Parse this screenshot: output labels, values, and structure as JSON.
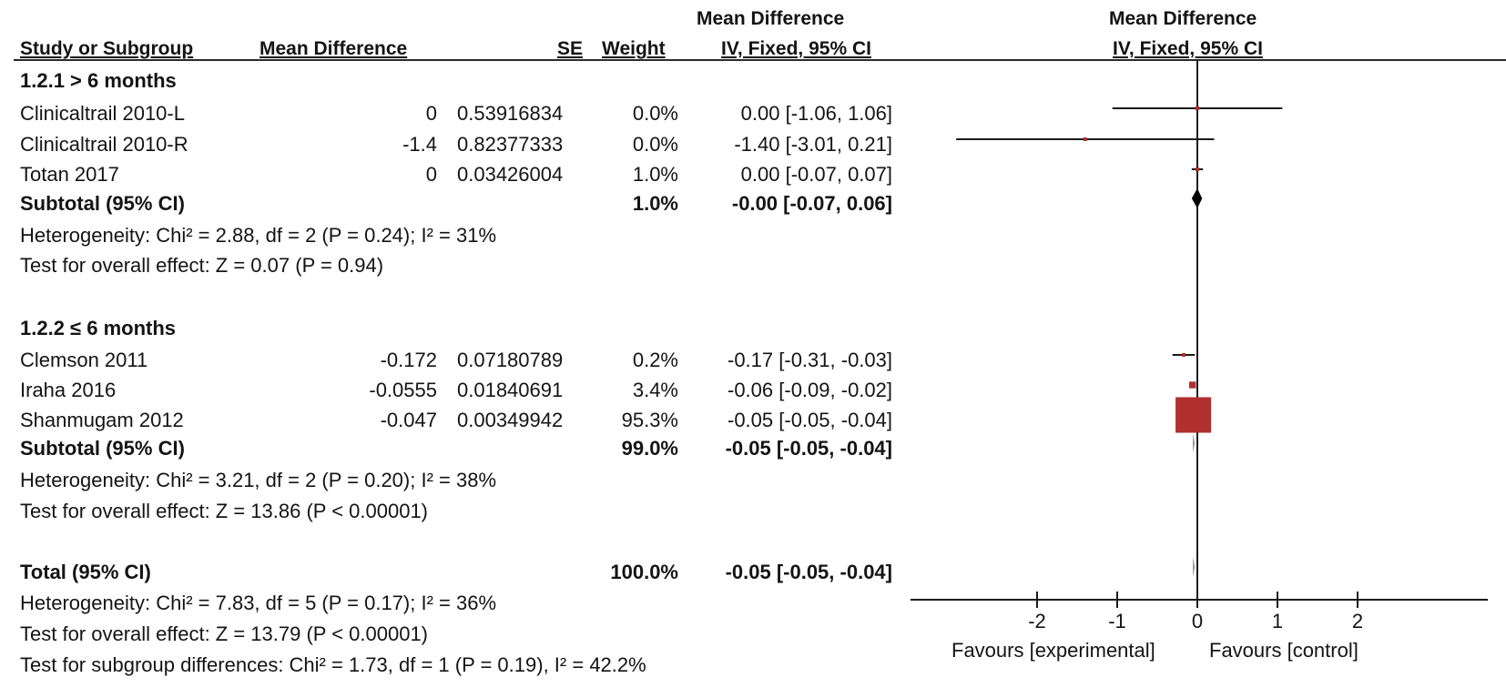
{
  "headers": {
    "study": "Study or Subgroup",
    "md": "Mean Difference",
    "se": "SE",
    "weight": "Weight",
    "ci_top": "Mean Difference",
    "ci_bottom": "IV, Fixed, 95% CI",
    "plot_top": "Mean Difference",
    "plot_bottom": "IV, Fixed, 95% CI"
  },
  "groups": [
    {
      "title": "1.2.1 > 6 months",
      "studies": [
        {
          "name": "Clinicaltrail 2010-L",
          "md": "0",
          "se": "0.53916834",
          "weight": "0.0%",
          "ci": "0.00 [-1.06, 1.06]"
        },
        {
          "name": "Clinicaltrail 2010-R",
          "md": "-1.4",
          "se": "0.82377333",
          "weight": "0.0%",
          "ci": "-1.40 [-3.01, 0.21]"
        },
        {
          "name": "Totan 2017",
          "md": "0",
          "se": "0.03426004",
          "weight": "1.0%",
          "ci": "0.00 [-0.07, 0.07]"
        }
      ],
      "subtotal": {
        "label": "Subtotal (95% CI)",
        "weight": "1.0%",
        "ci": "-0.00 [-0.07, 0.06]"
      },
      "heterogeneity": "Heterogeneity: Chi² = 2.88, df = 2 (P = 0.24); I² = 31%",
      "overall": "Test for overall effect: Z = 0.07 (P = 0.94)"
    },
    {
      "title": "1.2.2 ≤ 6 months",
      "studies": [
        {
          "name": "Clemson 2011",
          "md": "-0.172",
          "se": "0.07180789",
          "weight": "0.2%",
          "ci": "-0.17 [-0.31, -0.03]"
        },
        {
          "name": "Iraha 2016",
          "md": "-0.0555",
          "se": "0.01840691",
          "weight": "3.4%",
          "ci": "-0.06 [-0.09, -0.02]"
        },
        {
          "name": "Shanmugam 2012",
          "md": "-0.047",
          "se": "0.00349942",
          "weight": "95.3%",
          "ci": "-0.05 [-0.05, -0.04]"
        }
      ],
      "subtotal": {
        "label": "Subtotal (95% CI)",
        "weight": "99.0%",
        "ci": "-0.05 [-0.05, -0.04]"
      },
      "heterogeneity": "Heterogeneity: Chi² = 3.21, df = 2 (P = 0.20); I² = 38%",
      "overall": "Test for overall effect: Z = 13.86 (P < 0.00001)"
    }
  ],
  "total": {
    "label": "Total (95% CI)",
    "weight": "100.0%",
    "ci": "-0.05 [-0.05, -0.04]",
    "heterogeneity": "Heterogeneity: Chi² = 7.83, df = 5 (P = 0.17); I² = 36%",
    "overall": "Test for overall effect: Z = 13.79 (P < 0.00001)",
    "subgroup": "Test for subgroup differences: Chi² = 1.73, df = 1 (P = 0.19), I² = 42.2%"
  },
  "axis_labels": {
    "left": "Favours [experimental]",
    "right": "Favours [control]"
  },
  "colors": {
    "marker": "#b03030",
    "line": "#1a1a1a"
  },
  "chart_data": {
    "type": "forest",
    "xlim": [
      -3.5,
      3.5
    ],
    "xticks": [
      -2,
      -1,
      0,
      1,
      2
    ],
    "xtick_labels": [
      "-2",
      "-1",
      "0",
      "1",
      "2"
    ],
    "studies": [
      {
        "name": "Clinicaltrail 2010-L",
        "est": 0.0,
        "lo": -1.06,
        "hi": 1.06,
        "weight": 0.0
      },
      {
        "name": "Clinicaltrail 2010-R",
        "est": -1.4,
        "lo": -3.01,
        "hi": 0.21,
        "weight": 0.0
      },
      {
        "name": "Totan 2017",
        "est": 0.0,
        "lo": -0.07,
        "hi": 0.07,
        "weight": 1.0
      },
      {
        "name": "Clemson 2011",
        "est": -0.17,
        "lo": -0.31,
        "hi": -0.03,
        "weight": 0.2
      },
      {
        "name": "Iraha 2016",
        "est": -0.06,
        "lo": -0.09,
        "hi": -0.02,
        "weight": 3.4
      },
      {
        "name": "Shanmugam 2012",
        "est": -0.05,
        "lo": -0.05,
        "hi": -0.04,
        "weight": 95.3
      }
    ],
    "summaries": [
      {
        "name": "Subtotal 1.2.1",
        "est": -0.0,
        "lo": -0.07,
        "hi": 0.06
      },
      {
        "name": "Subtotal 1.2.2",
        "est": -0.05,
        "lo": -0.05,
        "hi": -0.04
      },
      {
        "name": "Total",
        "est": -0.05,
        "lo": -0.05,
        "hi": -0.04
      }
    ]
  }
}
